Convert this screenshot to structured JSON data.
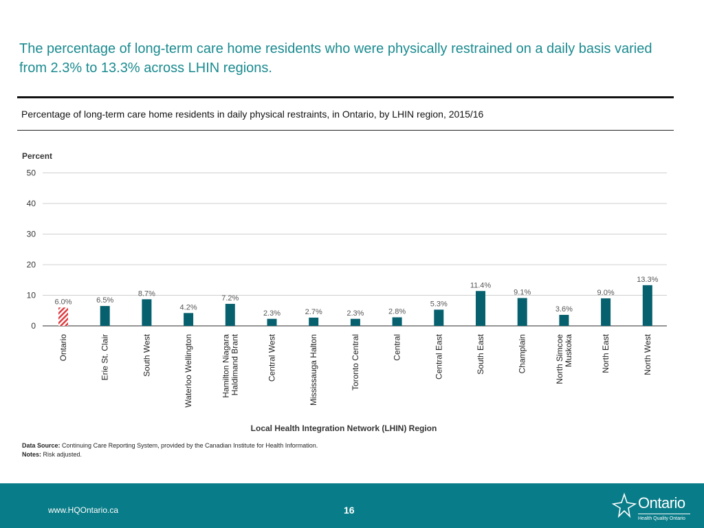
{
  "headline": "The percentage of long-term care home residents who were physically restrained on a daily basis varied from 2.3% to 13.3% across LHIN regions.",
  "subtitle": "Percentage of long-term care home residents in daily physical restraints, in Ontario, by LHIN region, 2015/16",
  "source": {
    "data_source_label": "Data Source:",
    "data_source_text": " Continuing Care Reporting System, provided by the Canadian Institute for Health Information.",
    "notes_label": "Notes:",
    "notes_text": " Risk adjusted."
  },
  "footer": {
    "url": "www.HQOntario.ca",
    "page": "16",
    "logo_text": "Ontario",
    "logo_sub": "Health Quality Ontario"
  },
  "colors": {
    "bar": "#06606e",
    "ontario_hatch": "#e03a3e",
    "accent": "#1a8a8f",
    "footer": "#087c88"
  },
  "chart_data": {
    "type": "bar",
    "ylabel": "Percent",
    "xlabel": "Local Health Integration Network (LHIN) Region",
    "ylim": [
      0,
      50
    ],
    "yticks": [
      0,
      10,
      20,
      30,
      40,
      50
    ],
    "grid": true,
    "categories": [
      [
        "Ontario"
      ],
      [
        "Erie St. Clair"
      ],
      [
        "South West"
      ],
      [
        "Waterloo Wellington"
      ],
      [
        "Hamilton Niagara",
        "Haldimand Brant"
      ],
      [
        "Central West"
      ],
      [
        "Mississauga Halton"
      ],
      [
        "Toronto Central"
      ],
      [
        "Central"
      ],
      [
        "Central East"
      ],
      [
        "South East"
      ],
      [
        "Champlain"
      ],
      [
        "North Simcoe",
        "Muskoka"
      ],
      [
        "North East"
      ],
      [
        "North West"
      ]
    ],
    "values": [
      6.0,
      6.5,
      8.7,
      4.2,
      7.2,
      2.3,
      2.7,
      2.3,
      2.8,
      5.3,
      11.4,
      9.1,
      3.6,
      9.0,
      13.3
    ],
    "labels": [
      "6.0%",
      "6.5%",
      "8.7%",
      "4.2%",
      "7.2%",
      "2.3%",
      "2.7%",
      "2.3%",
      "2.8%",
      "5.3%",
      "11.4%",
      "9.1%",
      "3.6%",
      "9.0%",
      "13.3%"
    ],
    "highlight_index": 0
  }
}
